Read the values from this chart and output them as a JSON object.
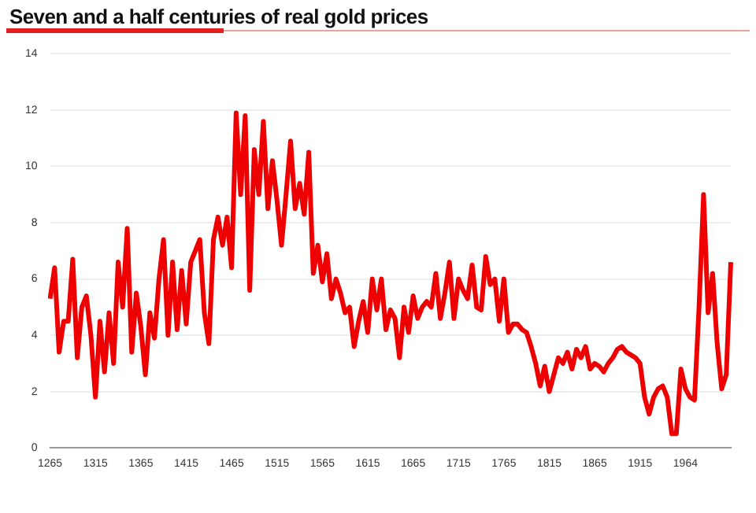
{
  "chart_data": {
    "type": "line",
    "title": "Seven and a half centuries of real gold prices",
    "categories": [
      "1265",
      null,
      null,
      null,
      null,
      null,
      null,
      null,
      null,
      null,
      "1315",
      null,
      null,
      null,
      null,
      null,
      null,
      null,
      null,
      null,
      "1365",
      null,
      null,
      null,
      null,
      null,
      null,
      null,
      null,
      null,
      "1415",
      null,
      null,
      null,
      null,
      null,
      null,
      null,
      null,
      null,
      "1465",
      null,
      null,
      null,
      null,
      null,
      null,
      null,
      null,
      null,
      "1515",
      null,
      null,
      null,
      null,
      null,
      null,
      null,
      null,
      null,
      "1565",
      null,
      null,
      null,
      null,
      null,
      null,
      null,
      null,
      null,
      "1615",
      null,
      null,
      null,
      null,
      null,
      null,
      null,
      null,
      null,
      "1665",
      null,
      null,
      null,
      null,
      null,
      null,
      null,
      null,
      null,
      "1715",
      null,
      null,
      null,
      null,
      null,
      null,
      null,
      null,
      null,
      "1765",
      null,
      null,
      null,
      null,
      null,
      null,
      null,
      null,
      null,
      "1815",
      null,
      null,
      null,
      null,
      null,
      null,
      null,
      null,
      null,
      "1865",
      null,
      null,
      null,
      null,
      null,
      null,
      null,
      null,
      null,
      "1915",
      null,
      null,
      null,
      null,
      null,
      null,
      null,
      null,
      null,
      "1964",
      null,
      null,
      null,
      null,
      null,
      null,
      null,
      null,
      null,
      null
    ],
    "series": [
      {
        "color": "#ee0000",
        "values": [
          5.3,
          6.4,
          3.4,
          4.5,
          4.5,
          6.7,
          3.2,
          5.0,
          5.4,
          4.0,
          1.8,
          4.5,
          2.7,
          4.8,
          3.0,
          6.6,
          5.0,
          7.8,
          3.4,
          5.5,
          4.3,
          2.6,
          4.8,
          3.9,
          6.0,
          7.4,
          4.0,
          6.6,
          4.2,
          6.3,
          4.4,
          6.6,
          7.0,
          7.4,
          4.8,
          3.7,
          7.4,
          8.2,
          7.2,
          8.2,
          6.4,
          11.9,
          9.0,
          11.8,
          5.6,
          10.6,
          9.0,
          11.6,
          8.5,
          10.2,
          8.8,
          7.2,
          9.0,
          10.9,
          8.5,
          9.4,
          8.3,
          10.5,
          6.2,
          7.2,
          5.9,
          6.9,
          5.3,
          6.0,
          5.5,
          4.8,
          5.0,
          3.6,
          4.5,
          5.2,
          4.1,
          6.0,
          4.9,
          6.0,
          4.2,
          4.9,
          4.6,
          3.2,
          5.0,
          4.1,
          5.4,
          4.6,
          5.0,
          5.2,
          5.0,
          6.2,
          4.6,
          5.5,
          6.6,
          4.6,
          6.0,
          5.6,
          5.3,
          6.5,
          5.0,
          4.9,
          6.8,
          5.8,
          6.0,
          4.5,
          6.0,
          4.1,
          4.4,
          4.4,
          4.2,
          4.1,
          3.6,
          3.0,
          2.2,
          2.9,
          2.0,
          2.6,
          3.2,
          3.0,
          3.4,
          2.8,
          3.5,
          3.2,
          3.6,
          2.8,
          3.0,
          2.9,
          2.7,
          3.0,
          3.2,
          3.5,
          3.6,
          3.4,
          3.3,
          3.2,
          3.0,
          1.8,
          1.2,
          1.8,
          2.1,
          2.2,
          1.8,
          0.5,
          0.5,
          2.8,
          2.1,
          1.8,
          1.7,
          5.0,
          9.0,
          4.8,
          6.2,
          3.7,
          2.1,
          2.6,
          6.6
        ]
      }
    ],
    "ylim": [
      0,
      14
    ],
    "yticks": [
      0,
      2,
      4,
      6,
      8,
      10,
      12,
      14
    ],
    "grid": "y",
    "legend": false,
    "marker": "none",
    "line_style": "solid"
  }
}
